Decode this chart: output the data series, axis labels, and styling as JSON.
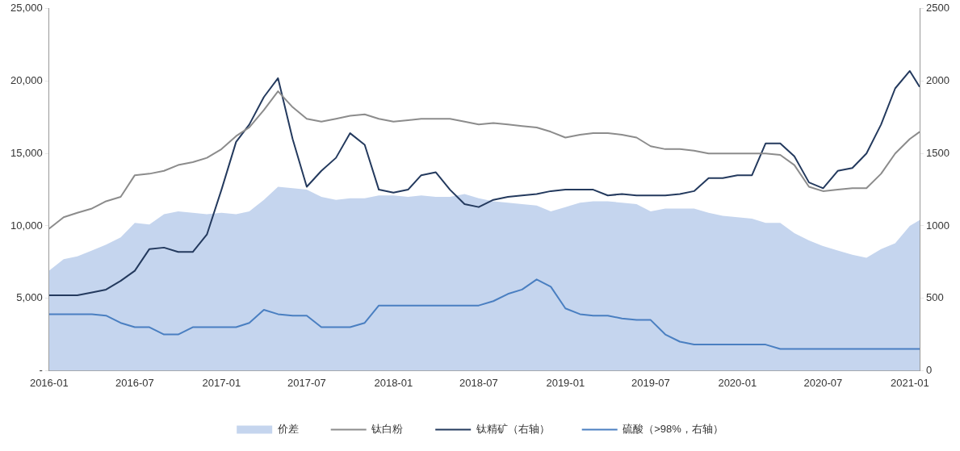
{
  "chart_data": {
    "type": "line",
    "x": [
      "2016-01",
      "2016-02",
      "2016-03",
      "2016-04",
      "2016-05",
      "2016-06",
      "2016-07",
      "2016-08",
      "2016-09",
      "2016-10",
      "2016-11",
      "2016-12",
      "2017-01",
      "2017-02",
      "2017-03",
      "2017-04",
      "2017-05",
      "2017-06",
      "2017-07",
      "2017-08",
      "2017-09",
      "2017-10",
      "2017-11",
      "2017-12",
      "2018-01",
      "2018-02",
      "2018-03",
      "2018-04",
      "2018-05",
      "2018-06",
      "2018-07",
      "2018-08",
      "2018-09",
      "2018-10",
      "2018-11",
      "2018-12",
      "2019-01",
      "2019-02",
      "2019-03",
      "2019-04",
      "2019-05",
      "2019-06",
      "2019-07",
      "2019-08",
      "2019-09",
      "2019-10",
      "2019-11",
      "2019-12",
      "2020-01",
      "2020-02",
      "2020-03",
      "2020-04",
      "2020-05",
      "2020-06",
      "2020-07",
      "2020-08",
      "2020-09",
      "2020-10",
      "2020-11",
      "2020-12",
      "2021-01",
      "2021-01-22"
    ],
    "series": [
      {
        "name": "价差",
        "type": "area",
        "color": "#c5d5ee",
        "values": [
          6900,
          7700,
          7900,
          8300,
          8700,
          9200,
          10200,
          10100,
          10800,
          11000,
          10900,
          10800,
          10900,
          10800,
          11000,
          11800,
          12700,
          12600,
          12500,
          12000,
          11800,
          11900,
          11900,
          12100,
          12100,
          12000,
          12100,
          12000,
          12000,
          12200,
          11900,
          11700,
          11600,
          11500,
          11400,
          11000,
          11300,
          11600,
          11700,
          11700,
          11600,
          11500,
          11000,
          11200,
          11200,
          11200,
          10900,
          10700,
          10600,
          10500,
          10200,
          10200,
          9500,
          9000,
          8600,
          8300,
          8000,
          7800,
          8400,
          8800,
          10000,
          10400
        ]
      },
      {
        "name": "钛白粉",
        "type": "line",
        "color": "#8c8c8c",
        "values": [
          9800,
          10600,
          10900,
          11200,
          11700,
          12000,
          13500,
          13600,
          13800,
          14200,
          14400,
          14700,
          15300,
          16200,
          16800,
          18000,
          19300,
          18200,
          17400,
          17200,
          17400,
          17600,
          17700,
          17400,
          17200,
          17300,
          17400,
          17400,
          17400,
          17200,
          17000,
          17100,
          17000,
          16900,
          16800,
          16500,
          16100,
          16300,
          16400,
          16400,
          16300,
          16100,
          15500,
          15300,
          15300,
          15200,
          15000,
          15000,
          15000,
          15000,
          15000,
          14900,
          14200,
          12700,
          12400,
          12500,
          12600,
          12600,
          13600,
          15000,
          16000,
          16500
        ]
      },
      {
        "name": "钛精矿（右轴）",
        "type": "line",
        "axis": "y2",
        "color": "#243a5e",
        "values": [
          520,
          520,
          520,
          540,
          560,
          620,
          690,
          840,
          850,
          820,
          820,
          940,
          1250,
          1580,
          1700,
          1890,
          2020,
          1600,
          1270,
          1380,
          1470,
          1640,
          1560,
          1250,
          1230,
          1250,
          1350,
          1370,
          1250,
          1150,
          1130,
          1180,
          1200,
          1210,
          1220,
          1240,
          1250,
          1250,
          1250,
          1210,
          1220,
          1210,
          1210,
          1210,
          1220,
          1240,
          1330,
          1330,
          1350,
          1350,
          1570,
          1570,
          1480,
          1300,
          1260,
          1380,
          1400,
          1500,
          1700,
          1950,
          2070,
          1960
        ]
      },
      {
        "name": "硫酸（>98%，右轴）",
        "type": "line",
        "axis": "y2",
        "color": "#4a7fc1",
        "values": [
          390,
          390,
          390,
          390,
          380,
          330,
          300,
          300,
          250,
          250,
          300,
          300,
          300,
          300,
          330,
          420,
          390,
          380,
          380,
          300,
          300,
          300,
          330,
          450,
          450,
          450,
          450,
          450,
          450,
          450,
          450,
          480,
          530,
          560,
          630,
          580,
          430,
          390,
          380,
          380,
          360,
          350,
          350,
          250,
          200,
          180,
          180,
          180,
          180,
          180,
          180,
          150,
          150,
          150,
          150,
          150,
          150,
          150,
          150,
          150,
          150,
          150
        ]
      }
    ],
    "xlim": [
      "2016-01",
      "2021-01-22"
    ],
    "xticks": [
      "2016-01",
      "2016-07",
      "2017-01",
      "2017-07",
      "2018-01",
      "2018-07",
      "2019-01",
      "2019-07",
      "2020-01",
      "2020-07",
      "2021-01"
    ],
    "ylim": [
      0,
      25000
    ],
    "yticks": [
      {
        "value": 0,
        "label": "-"
      },
      {
        "value": 5000,
        "label": "5,000"
      },
      {
        "value": 10000,
        "label": "10,000"
      },
      {
        "value": 15000,
        "label": "15,000"
      },
      {
        "value": 20000,
        "label": "20,000"
      },
      {
        "value": 25000,
        "label": "25,000"
      }
    ],
    "y2lim": [
      0,
      2500
    ],
    "y2ticks": [
      0,
      500,
      1000,
      1500,
      2000,
      2500
    ],
    "grid": false,
    "legend": "bottom",
    "marker": "none",
    "line_style": "solid"
  }
}
